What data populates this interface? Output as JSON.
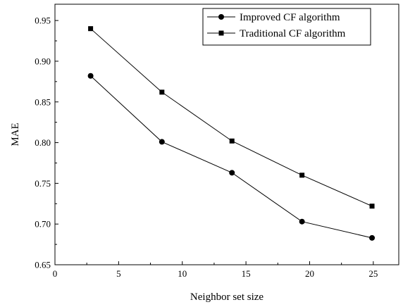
{
  "chart_data": {
    "type": "line",
    "title": "",
    "xlabel": "Neighbor set size",
    "ylabel": "MAE",
    "xlim": [
      0,
      27
    ],
    "ylim": [
      0.65,
      0.97
    ],
    "x_ticks": [
      0,
      5,
      10,
      15,
      20,
      25
    ],
    "y_ticks": [
      0.65,
      0.7,
      0.75,
      0.8,
      0.85,
      0.9,
      0.95
    ],
    "x_tick_labels": [
      "0",
      "5",
      "10",
      "15",
      "20",
      "25"
    ],
    "y_tick_labels": [
      "0.65",
      "0.70",
      "0.75",
      "0.80",
      "0.85",
      "0.90",
      "0.95"
    ],
    "grid": false,
    "legend_position": "top-right",
    "series": [
      {
        "name": "Improved CF algorithm",
        "marker": "circle",
        "color": "#000000",
        "x": [
          2.8,
          8.4,
          13.9,
          19.4,
          24.9
        ],
        "y": [
          0.882,
          0.801,
          0.763,
          0.703,
          0.683
        ]
      },
      {
        "name": "Traditional CF algorithm",
        "marker": "square",
        "color": "#000000",
        "x": [
          2.8,
          8.4,
          13.9,
          19.4,
          24.9
        ],
        "y": [
          0.94,
          0.862,
          0.802,
          0.76,
          0.722
        ]
      }
    ]
  }
}
